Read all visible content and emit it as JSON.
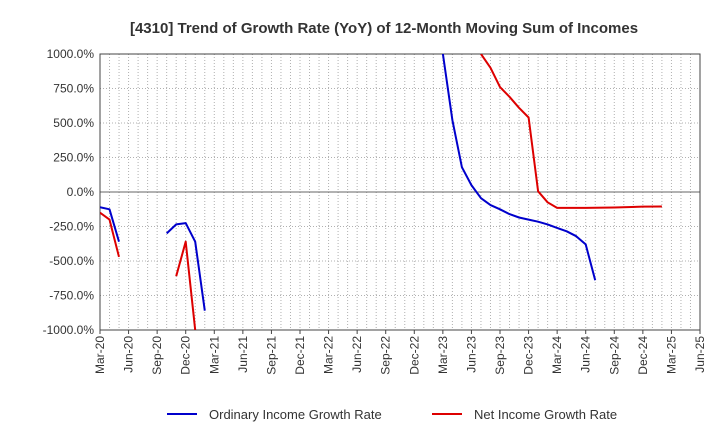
{
  "chart_data": {
    "type": "line",
    "title": "[4310]  Trend of Growth Rate (YoY) of 12-Month Moving Sum of Incomes",
    "xlabel": "",
    "ylabel": "",
    "ylim": [
      -1000,
      1000
    ],
    "y_ticks": [
      "1000.0%",
      "750.0%",
      "500.0%",
      "250.0%",
      "0.0%",
      "-250.0%",
      "-500.0%",
      "-750.0%",
      "-1000.0%"
    ],
    "y_tick_values": [
      1000,
      750,
      500,
      250,
      0,
      -250,
      -500,
      -750,
      -1000
    ],
    "x_ticks": [
      "Mar-20",
      "Jun-20",
      "Sep-20",
      "Dec-20",
      "Mar-21",
      "Jun-21",
      "Sep-21",
      "Dec-21",
      "Mar-22",
      "Jun-22",
      "Sep-22",
      "Dec-22",
      "Mar-23",
      "Jun-23",
      "Sep-23",
      "Dec-23",
      "Mar-24",
      "Jun-24",
      "Sep-24",
      "Dec-24",
      "Mar-25",
      "Jun-25"
    ],
    "grid": true,
    "legend_position": "bottom",
    "series": [
      {
        "name": "Ordinary Income Growth Rate",
        "color": "#0000cc",
        "points": [
          [
            "Mar-20",
            -110
          ],
          [
            "Apr-20",
            -125
          ],
          [
            "May-20",
            -360
          ],
          null,
          [
            "Oct-20",
            -300
          ],
          [
            "Nov-20",
            -235
          ],
          [
            "Dec-20",
            -225
          ],
          [
            "Jan-21",
            -360
          ],
          [
            "Feb-21",
            -860
          ],
          null,
          [
            "Mar-23",
            1000
          ],
          [
            "Apr-23",
            520
          ],
          [
            "May-23",
            180
          ],
          [
            "Jun-23",
            50
          ],
          [
            "Jul-23",
            -45
          ],
          [
            "Aug-23",
            -95
          ],
          [
            "Sep-23",
            -125
          ],
          [
            "Oct-23",
            -160
          ],
          [
            "Nov-23",
            -185
          ],
          [
            "Dec-23",
            -200
          ],
          [
            "Jan-24",
            -215
          ],
          [
            "Feb-24",
            -235
          ],
          [
            "Mar-24",
            -260
          ],
          [
            "Apr-24",
            -285
          ],
          [
            "May-24",
            -320
          ],
          [
            "Jun-24",
            -380
          ],
          [
            "Jul-24",
            -640
          ]
        ]
      },
      {
        "name": "Net Income Growth Rate",
        "color": "#dd0000",
        "points": [
          [
            "Mar-20",
            -150
          ],
          [
            "Apr-20",
            -200
          ],
          [
            "May-20",
            -470
          ],
          null,
          [
            "Nov-20",
            -610
          ],
          [
            "Dec-20",
            -360
          ],
          [
            "Jan-21",
            -1000
          ],
          null,
          [
            "Jul-23",
            1000
          ],
          [
            "Aug-23",
            900
          ],
          [
            "Sep-23",
            760
          ],
          [
            "Oct-23",
            690
          ],
          [
            "Nov-23",
            610
          ],
          [
            "Dec-23",
            540
          ],
          [
            "Jan-24",
            5
          ],
          [
            "Feb-24",
            -75
          ],
          [
            "Mar-24",
            -115
          ],
          [
            "Apr-24",
            -115
          ],
          [
            "Jun-24",
            -115
          ],
          [
            "Sep-24",
            -112
          ],
          [
            "Dec-24",
            -106
          ],
          [
            "Feb-25",
            -105
          ]
        ]
      }
    ]
  }
}
